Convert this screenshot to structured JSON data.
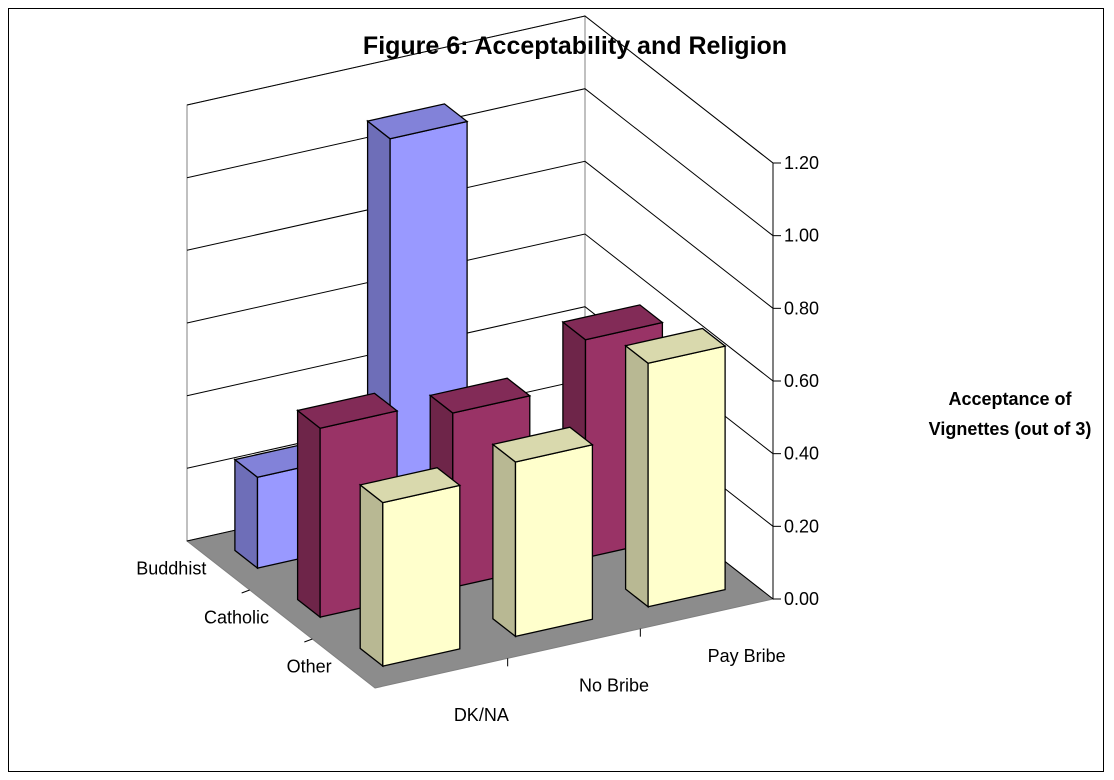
{
  "chart_data": {
    "type": "bar",
    "title": "Figure 6: Acceptability and Religion",
    "ylabel_lines": [
      "Acceptance of",
      "Vignettes (out of 3)"
    ],
    "ylim": [
      0,
      1.2
    ],
    "y_ticks": [
      "0.00",
      "0.20",
      "0.40",
      "0.60",
      "0.80",
      "1.00",
      "1.20"
    ],
    "categories": [
      "DK/NA",
      "No Bribe",
      "Pay Bribe"
    ],
    "series": [
      {
        "name": "Buddhist",
        "values": [
          0.25,
          1.1,
          null
        ],
        "color": "#9999ff"
      },
      {
        "name": "Catholic",
        "values": [
          0.52,
          0.48,
          0.6
        ],
        "color": "#993366"
      },
      {
        "name": "Other",
        "values": [
          0.45,
          0.48,
          0.67
        ],
        "color": "#ffffcc"
      }
    ]
  }
}
